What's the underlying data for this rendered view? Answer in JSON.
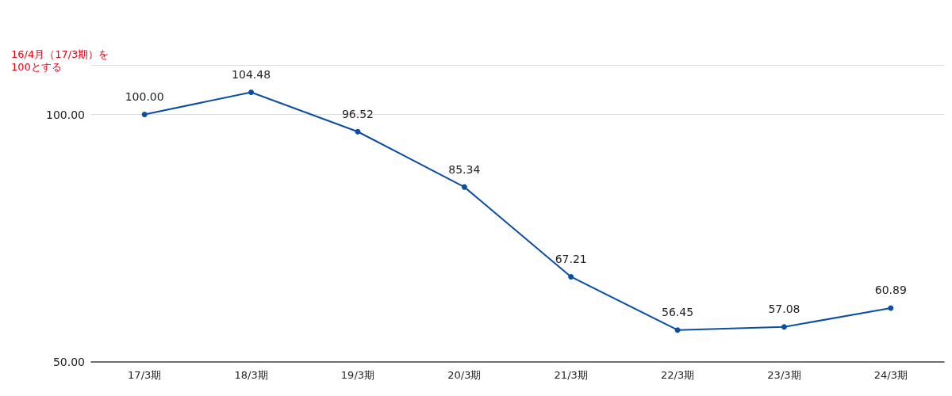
{
  "chart_data": {
    "type": "line",
    "ylabel": "16/4月（17/3期）を100とする",
    "categories": [
      "17/3期",
      "18/3期",
      "19/3期",
      "20/3期",
      "21/3期",
      "22/3期",
      "23/3期",
      "24/3期"
    ],
    "series": [
      {
        "color": "#0b4ea2",
        "values": [
          100.0,
          104.48,
          96.52,
          85.34,
          67.21,
          56.45,
          57.08,
          60.89
        ],
        "value_labels": [
          "100.00",
          "104.48",
          "96.52",
          "85.34",
          "67.21",
          "56.45",
          "57.08",
          "60.89"
        ]
      }
    ],
    "ylim": [
      50,
      110
    ],
    "yticks": [
      {
        "value": 50,
        "label": "50.00"
      },
      {
        "value": 100,
        "label": "100.00"
      }
    ],
    "grid": "y",
    "marker": "circle",
    "line_style": "solid"
  }
}
